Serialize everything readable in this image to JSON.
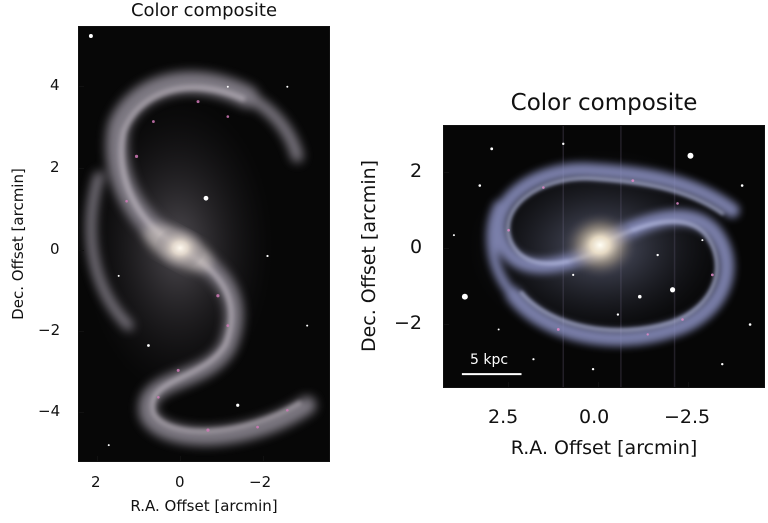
{
  "figure": {
    "left_panel": {
      "title": "Color composite",
      "xlabel": "R.A. Offset [arcmin]",
      "ylabel": "Dec. Offset [arcmin]",
      "xticks": [
        "2",
        "0",
        "−2"
      ],
      "yticks": [
        "4",
        "2",
        "0",
        "−2",
        "−4"
      ]
    },
    "right_panel": {
      "title": "Color composite",
      "xlabel": "R.A. Offset [arcmin]",
      "ylabel": "Dec. Offset [arcmin]",
      "xticks": [
        "2.5",
        "0.0",
        "−2.5"
      ],
      "yticks": [
        "2",
        "0",
        "−2"
      ],
      "scale_bar_label": "5 kpc"
    }
  }
}
